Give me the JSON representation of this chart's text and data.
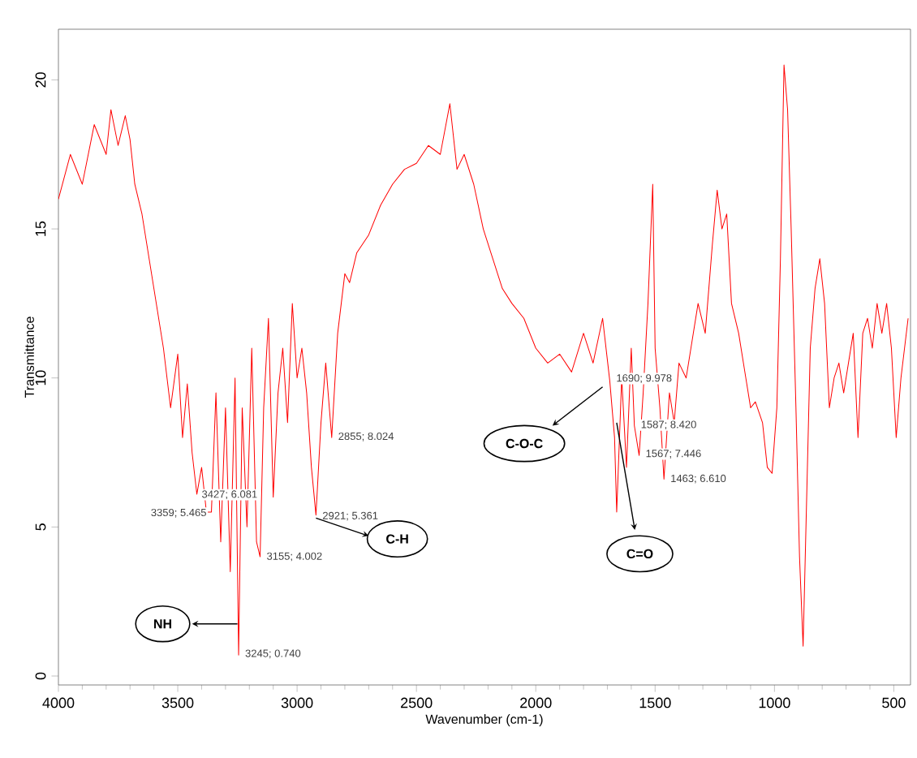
{
  "chart_data": {
    "type": "line",
    "xlabel": "Wavenumber (cm-1)",
    "ylabel": "Transmittance",
    "xlim": [
      4000,
      430
    ],
    "ylim": [
      -0.3,
      21.7
    ],
    "xticks": [
      4000,
      3500,
      3000,
      2500,
      2000,
      1500,
      1000,
      500
    ],
    "yticks": [
      0,
      5,
      10,
      15,
      20
    ],
    "series": [
      {
        "color": "#ff0000",
        "x": [
          4000,
          3950,
          3900,
          3850,
          3800,
          3780,
          3750,
          3720,
          3700,
          3680,
          3650,
          3600,
          3560,
          3530,
          3500,
          3480,
          3460,
          3440,
          3420,
          3400,
          3380,
          3359,
          3340,
          3320,
          3300,
          3280,
          3260,
          3245,
          3230,
          3210,
          3190,
          3170,
          3155,
          3140,
          3120,
          3100,
          3080,
          3060,
          3040,
          3020,
          3000,
          2980,
          2960,
          2940,
          2921,
          2900,
          2880,
          2855,
          2830,
          2800,
          2780,
          2750,
          2700,
          2650,
          2600,
          2550,
          2500,
          2450,
          2400,
          2360,
          2330,
          2300,
          2260,
          2220,
          2180,
          2140,
          2100,
          2050,
          2000,
          1950,
          1900,
          1850,
          1800,
          1760,
          1720,
          1690,
          1670,
          1661,
          1640,
          1620,
          1600,
          1587,
          1567,
          1550,
          1530,
          1510,
          1500,
          1480,
          1463,
          1440,
          1420,
          1400,
          1370,
          1350,
          1320,
          1290,
          1260,
          1240,
          1220,
          1200,
          1180,
          1150,
          1120,
          1100,
          1080,
          1050,
          1030,
          1010,
          990,
          975,
          960,
          945,
          930,
          910,
          895,
          880,
          865,
          850,
          830,
          810,
          790,
          770,
          750,
          730,
          710,
          690,
          670,
          650,
          630,
          610,
          590,
          570,
          550,
          530,
          510,
          490,
          470,
          440
        ],
        "values": [
          16,
          17.5,
          16.5,
          18.5,
          17.5,
          19,
          17.8,
          18.8,
          18,
          16.5,
          15.5,
          13,
          11,
          9,
          10.8,
          8,
          9.8,
          7.5,
          6.1,
          7,
          5.5,
          5.5,
          9.5,
          4.5,
          9,
          3.5,
          10,
          0.7,
          9,
          5,
          11,
          4.5,
          4,
          9,
          12,
          6,
          9.5,
          11,
          8.5,
          12.5,
          10,
          11,
          9.5,
          7,
          5.4,
          8.5,
          10.5,
          8,
          11.5,
          13.5,
          13.2,
          14.2,
          14.8,
          15.8,
          16.5,
          17,
          17.2,
          17.8,
          17.5,
          19.2,
          17,
          17.5,
          16.5,
          15,
          14,
          13,
          12.5,
          12,
          11,
          10.5,
          10.8,
          10.2,
          11.5,
          10.5,
          12,
          9.9,
          8,
          5.5,
          10,
          7,
          11,
          8.4,
          7.4,
          9.5,
          12.5,
          16.5,
          11,
          9,
          6.6,
          9.5,
          8.5,
          10.5,
          10,
          11,
          12.5,
          11.5,
          14.5,
          16.3,
          15,
          15.5,
          12.5,
          11.5,
          10,
          9,
          9.2,
          8.5,
          7,
          6.8,
          9,
          14,
          20.5,
          19,
          15,
          9,
          4,
          1,
          6,
          11,
          13,
          14,
          12.5,
          9,
          10,
          10.5,
          9.5,
          10.5,
          11.5,
          8,
          11.5,
          12,
          11,
          12.5,
          11.5,
          12.5,
          11,
          8,
          10,
          12
        ]
      }
    ],
    "annotations": [
      "NH",
      "C-H",
      "C-O-C",
      "C=O",
      {
        "text": "3359; 5.465",
        "x": 3359,
        "y": 5.465
      },
      {
        "text": "3427; 6.081",
        "x": 3427,
        "y": 6.081
      },
      {
        "text": "3155; 4.002",
        "x": 3155,
        "y": 4.002
      },
      {
        "text": "3245; 0.740",
        "x": 3245,
        "y": 0.74
      },
      {
        "text": "2921; 5.361",
        "x": 2921,
        "y": 5.361
      },
      {
        "text": "2855; 8.024",
        "x": 2855,
        "y": 8.024
      },
      {
        "text": "1690; 9.978",
        "x": 1690,
        "y": 9.978
      },
      {
        "text": "1587; 8.420",
        "x": 1587,
        "y": 8.42
      },
      {
        "text": "1567; 7.446",
        "x": 1567,
        "y": 7.446
      },
      {
        "text": "1463; 6.610",
        "x": 1463,
        "y": 6.61
      }
    ]
  }
}
